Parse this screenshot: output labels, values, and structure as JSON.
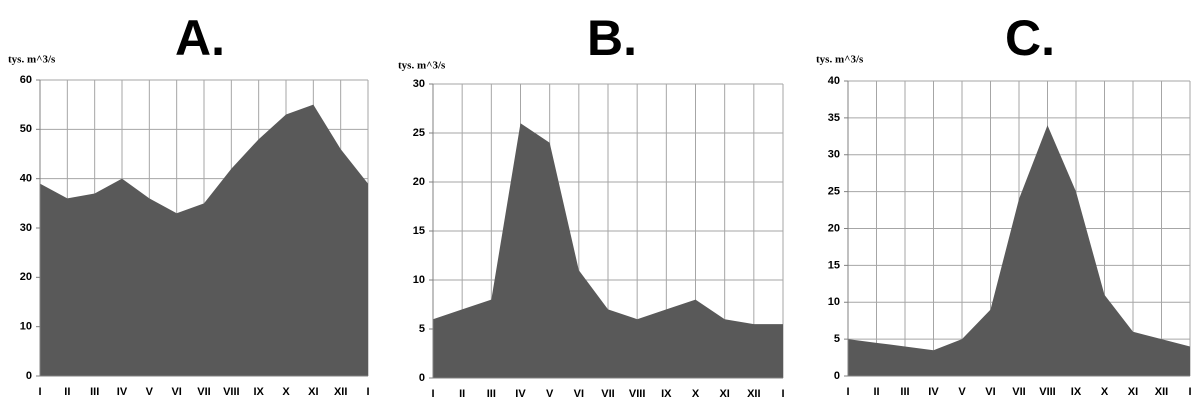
{
  "chart_data": [
    {
      "type": "area",
      "title": "A.",
      "y_label": "tys. m^3/s",
      "categories": [
        "I",
        "II",
        "III",
        "IV",
        "V",
        "VI",
        "VII",
        "VIII",
        "IX",
        "X",
        "XI",
        "XII",
        "I"
      ],
      "values": [
        39,
        36,
        37,
        40,
        36,
        33,
        35,
        42,
        48,
        53,
        55,
        46,
        39
      ],
      "color": "#595959",
      "ylim": [
        0,
        60
      ],
      "yticks": [
        0,
        10,
        20,
        30,
        40,
        50,
        60
      ],
      "grid": true
    },
    {
      "type": "area",
      "title": "B.",
      "y_label": "tys. m^3/s",
      "categories": [
        "I",
        "II",
        "III",
        "IV",
        "V",
        "VI",
        "VII",
        "VIII",
        "IX",
        "X",
        "XI",
        "XII",
        "I"
      ],
      "values": [
        6,
        7,
        8,
        26,
        24,
        11,
        7,
        6,
        7,
        8,
        6,
        5.5,
        5.5
      ],
      "color": "#595959",
      "ylim": [
        0,
        30
      ],
      "yticks": [
        0,
        5,
        10,
        15,
        20,
        25,
        30
      ],
      "grid": true
    },
    {
      "type": "area",
      "title": "C.",
      "y_label": "tys. m^3/s",
      "categories": [
        "I",
        "II",
        "III",
        "IV",
        "V",
        "VI",
        "VII",
        "VIII",
        "IX",
        "X",
        "XI",
        "XII",
        "I"
      ],
      "values": [
        5,
        4.5,
        4,
        3.5,
        5,
        9,
        24,
        34,
        25,
        11,
        6,
        5,
        4
      ],
      "color": "#595959",
      "ylim": [
        0,
        40
      ],
      "yticks": [
        0,
        5,
        10,
        15,
        20,
        25,
        30,
        35,
        40
      ],
      "grid": true
    }
  ]
}
